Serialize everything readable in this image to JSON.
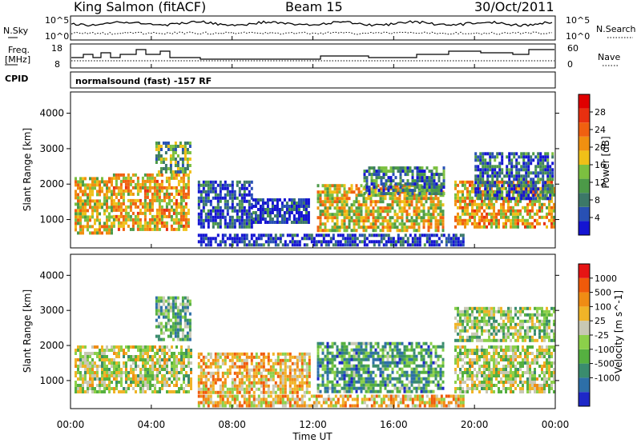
{
  "header": {
    "station": "King Salmon (fitACF)",
    "beam": "Beam 15",
    "date": "30/Oct/2011"
  },
  "noise_panel": {
    "left_label": "N.Sky",
    "right_label": "N.Search",
    "left_ticks": [
      "10^5",
      "10^0"
    ],
    "right_ticks": [
      "10^5",
      "10^0"
    ]
  },
  "freq_panel": {
    "left_label_line1": "Freq.",
    "left_label_line2": "[MHz]",
    "right_label": "Nave",
    "left_ticks": [
      "18",
      "8"
    ],
    "right_ticks": [
      "60",
      "0"
    ]
  },
  "cpid": {
    "label": "CPID",
    "value": "normalsound (fast) -157 RF"
  },
  "x_axis": {
    "label": "Time UT",
    "ticks": [
      "00:00",
      "04:00",
      "08:00",
      "12:00",
      "16:00",
      "20:00",
      "00:00"
    ]
  },
  "chart_data": [
    {
      "type": "heatmap",
      "panel": "power",
      "ylabel": "Slant Range [km]",
      "yticks": [
        "1000",
        "2000",
        "3000",
        "4000"
      ],
      "ylim": [
        200,
        4600
      ],
      "xlim_hours": [
        0,
        24
      ],
      "colorbar": {
        "label": "Power [dB]",
        "ticks": [
          "4",
          "8",
          "12",
          "16",
          "20",
          "24",
          "28"
        ],
        "colors": [
          "#1414d2",
          "#2850b4",
          "#3c7868",
          "#4c9a48",
          "#7cc040",
          "#f0c018",
          "#f09010",
          "#f06010",
          "#e83010",
          "#e00000"
        ]
      },
      "regions": [
        {
          "t0": 0.2,
          "t1": 2.0,
          "r0": 600,
          "r1": 2200,
          "level": 0.55
        },
        {
          "t0": 2.1,
          "t1": 5.9,
          "r0": 700,
          "r1": 2300,
          "level": 0.6
        },
        {
          "t0": 4.2,
          "t1": 5.9,
          "r0": 2300,
          "r1": 3200,
          "level": 0.35
        },
        {
          "t0": 6.3,
          "t1": 9.0,
          "r0": 800,
          "r1": 2100,
          "level": 0.15
        },
        {
          "t0": 9.0,
          "t1": 11.8,
          "r0": 900,
          "r1": 1600,
          "level": 0.1
        },
        {
          "t0": 12.2,
          "t1": 18.5,
          "r0": 700,
          "r1": 2000,
          "level": 0.55
        },
        {
          "t0": 14.5,
          "t1": 18.5,
          "r0": 1700,
          "r1": 2500,
          "level": 0.25
        },
        {
          "t0": 19.0,
          "t1": 23.9,
          "r0": 800,
          "r1": 2100,
          "level": 0.6
        },
        {
          "t0": 20.0,
          "t1": 23.9,
          "r0": 1600,
          "r1": 2900,
          "level": 0.2
        },
        {
          "t0": 6.3,
          "t1": 19.5,
          "r0": 250,
          "r1": 600,
          "level": 0.1
        }
      ]
    },
    {
      "type": "heatmap",
      "panel": "velocity",
      "ylabel": "Slant Range [km]",
      "yticks": [
        "1000",
        "2000",
        "3000",
        "4000"
      ],
      "ylim": [
        200,
        4600
      ],
      "xlim_hours": [
        0,
        24
      ],
      "colorbar": {
        "label": "Velocity [m s^-1]",
        "ticks": [
          "1000",
          "500",
          "100",
          "25",
          "-25",
          "-100",
          "-500",
          "-1000"
        ],
        "colors": [
          "#1e28c8",
          "#2d6fa8",
          "#3a8c6e",
          "#55b040",
          "#8cd04a",
          "#c8c8b4",
          "#f0b428",
          "#f08c14",
          "#f05a0a",
          "#e61414"
        ]
      },
      "regions": [
        {
          "t0": 0.2,
          "t1": 6.0,
          "r0": 700,
          "r1": 2000,
          "level": 0.5
        },
        {
          "t0": 4.2,
          "t1": 5.9,
          "r0": 2200,
          "r1": 3400,
          "level": 0.35
        },
        {
          "t0": 6.3,
          "t1": 11.8,
          "r0": 700,
          "r1": 1800,
          "level": 0.65
        },
        {
          "t0": 12.2,
          "t1": 18.5,
          "r0": 700,
          "r1": 2100,
          "level": 0.3
        },
        {
          "t0": 19.0,
          "t1": 23.9,
          "r0": 700,
          "r1": 2000,
          "level": 0.5
        },
        {
          "t0": 19.0,
          "t1": 23.9,
          "r0": 2100,
          "r1": 3100,
          "level": 0.45
        },
        {
          "t0": 6.3,
          "t1": 19.5,
          "r0": 250,
          "r1": 600,
          "level": 0.65
        }
      ]
    }
  ]
}
